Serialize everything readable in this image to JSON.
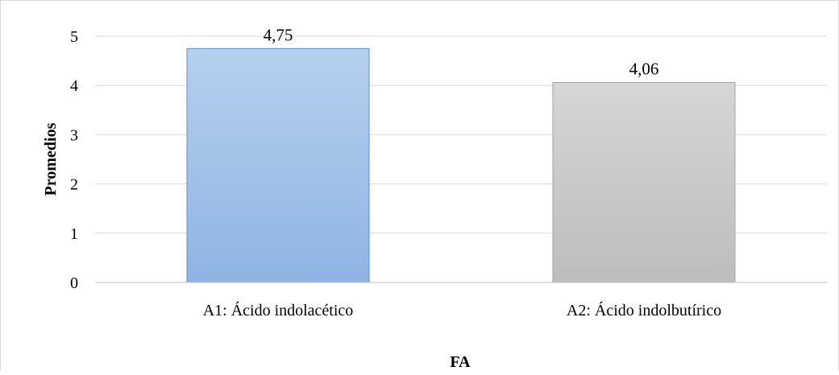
{
  "chart_data": {
    "type": "bar",
    "title": "",
    "xlabel": "FA",
    "ylabel": "Promedios",
    "categories": [
      "A1: Ácido indolacético",
      "A2: Ácido indolbutírico"
    ],
    "values": [
      4.75,
      4.06
    ],
    "data_labels": [
      "4,75",
      "4,06"
    ],
    "ylim": [
      0,
      5
    ],
    "yticks": [
      0,
      1,
      2,
      3,
      4,
      5
    ],
    "ytick_labels": [
      "0",
      "1",
      "2",
      "3",
      "4",
      "5"
    ],
    "grid": true,
    "legend": "none",
    "colors": {
      "bars": [
        "#9dbfe6",
        "#c8c8c8"
      ],
      "bar_outlines": [
        "#5b8fd0",
        "#a3a3a3"
      ],
      "grid": "#d9d9d9",
      "axis": "#bfbfbf"
    }
  }
}
